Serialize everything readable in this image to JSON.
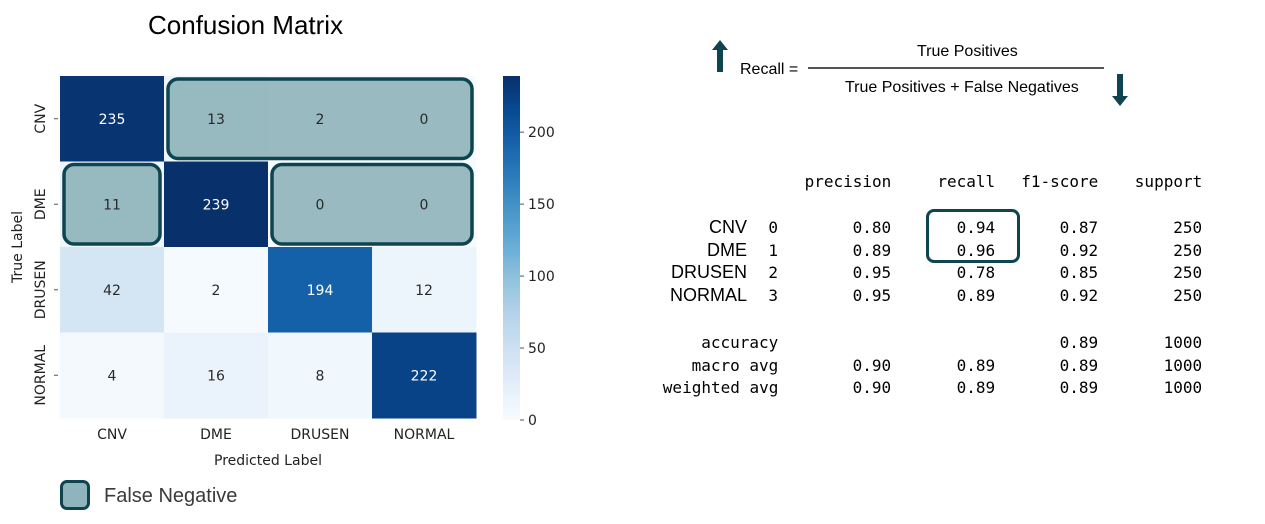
{
  "chart_data": [
    {
      "type": "heatmap",
      "title": "Confusion Matrix",
      "xlabel": "Predicted Label",
      "ylabel": "True Label",
      "x_categories": [
        "CNV",
        "DME",
        "DRUSEN",
        "NORMAL"
      ],
      "y_categories": [
        "CNV",
        "DME",
        "DRUSEN",
        "NORMAL"
      ],
      "values": [
        [
          235,
          13,
          2,
          0
        ],
        [
          11,
          239,
          0,
          0
        ],
        [
          42,
          2,
          194,
          12
        ],
        [
          4,
          16,
          8,
          222
        ]
      ],
      "colorbar": {
        "range": [
          0,
          239
        ],
        "ticks": [
          "0",
          "50",
          "100",
          "150",
          "200"
        ],
        "colormap": "Blues"
      },
      "false_negative_cells": [
        [
          0,
          1
        ],
        [
          0,
          2
        ],
        [
          0,
          3
        ],
        [
          1,
          0
        ],
        [
          1,
          2
        ],
        [
          1,
          3
        ]
      ]
    },
    {
      "type": "table",
      "columns": [
        "precision",
        "recall",
        "f1-score",
        "support"
      ],
      "rows": [
        {
          "name": "CNV",
          "index": "0",
          "values": [
            "0.80",
            "0.94",
            "0.87",
            "250"
          ]
        },
        {
          "name": "DME",
          "index": "1",
          "values": [
            "0.89",
            "0.96",
            "0.92",
            "250"
          ]
        },
        {
          "name": "DRUSEN",
          "index": "2",
          "values": [
            "0.95",
            "0.78",
            "0.85",
            "250"
          ]
        },
        {
          "name": "NORMAL",
          "index": "3",
          "values": [
            "0.95",
            "0.89",
            "0.92",
            "250"
          ]
        }
      ],
      "summary": [
        {
          "name": "accuracy",
          "values": [
            "",
            "",
            "0.89",
            "1000"
          ]
        },
        {
          "name": "macro avg",
          "values": [
            "0.90",
            "0.89",
            "0.89",
            "1000"
          ]
        },
        {
          "name": "weighted avg",
          "values": [
            "0.90",
            "0.89",
            "0.89",
            "1000"
          ]
        }
      ],
      "highlighted_column": "recall"
    }
  ],
  "legend": {
    "label": "False Negative",
    "fill": "#8fb4bb",
    "border": "#0e4450"
  },
  "formula": {
    "label": "Recall =",
    "numerator": "True Positives",
    "denominator": "True Positives + False Negatives"
  },
  "colors": {
    "accent": "#0e4450"
  }
}
